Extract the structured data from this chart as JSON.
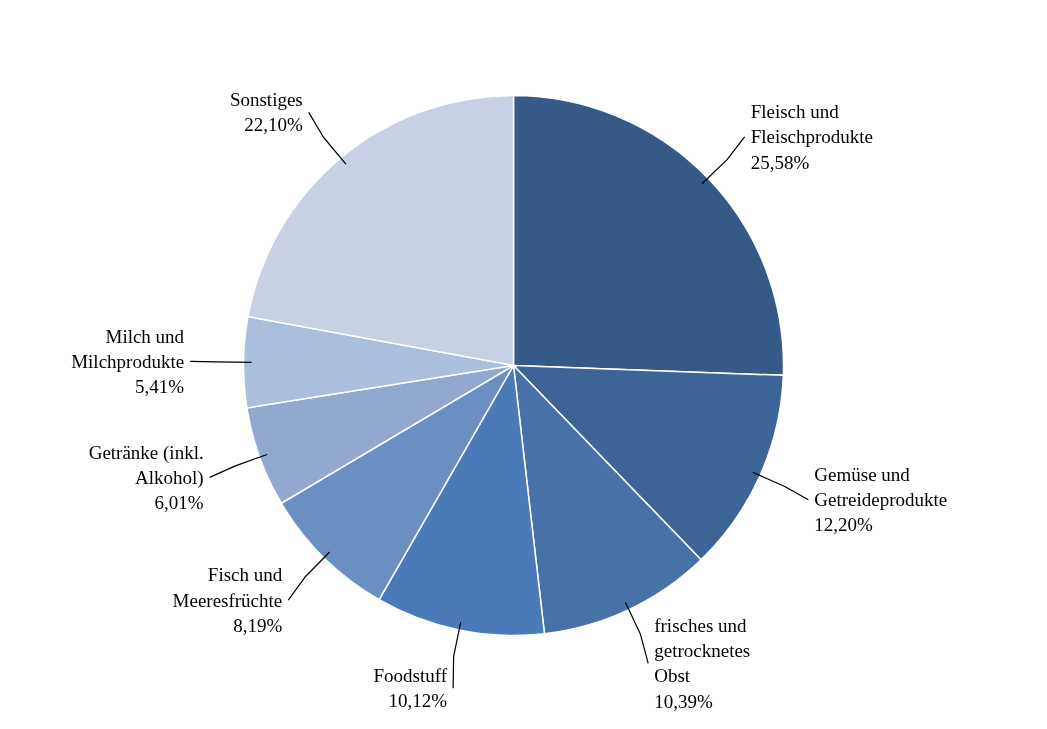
{
  "chart_data": {
    "type": "pie",
    "categories": [
      "Fleisch und Fleischprodukte",
      "Gemüse und Getreideprodukte",
      "frisches und getrocknetes Obst",
      "Foodstuff",
      "Fisch und Meeresfrüchte",
      "Getränke (inkl. Alkohol)",
      "Milch und Milchprodukte",
      "Sonstiges"
    ],
    "values": [
      25.58,
      12.2,
      10.39,
      10.12,
      8.19,
      6.01,
      5.41,
      22.1
    ],
    "value_labels": [
      "25,58%",
      "12,20%",
      "10,39%",
      "10,12%",
      "8,19%",
      "6,01%",
      "5,41%",
      "22,10%"
    ],
    "colors": [
      "#365a87",
      "#3d6496",
      "#4672a7",
      "#4a7bb8",
      "#6a8fc3",
      "#92a8d0",
      "#abbedd",
      "#c8d1e4"
    ]
  }
}
